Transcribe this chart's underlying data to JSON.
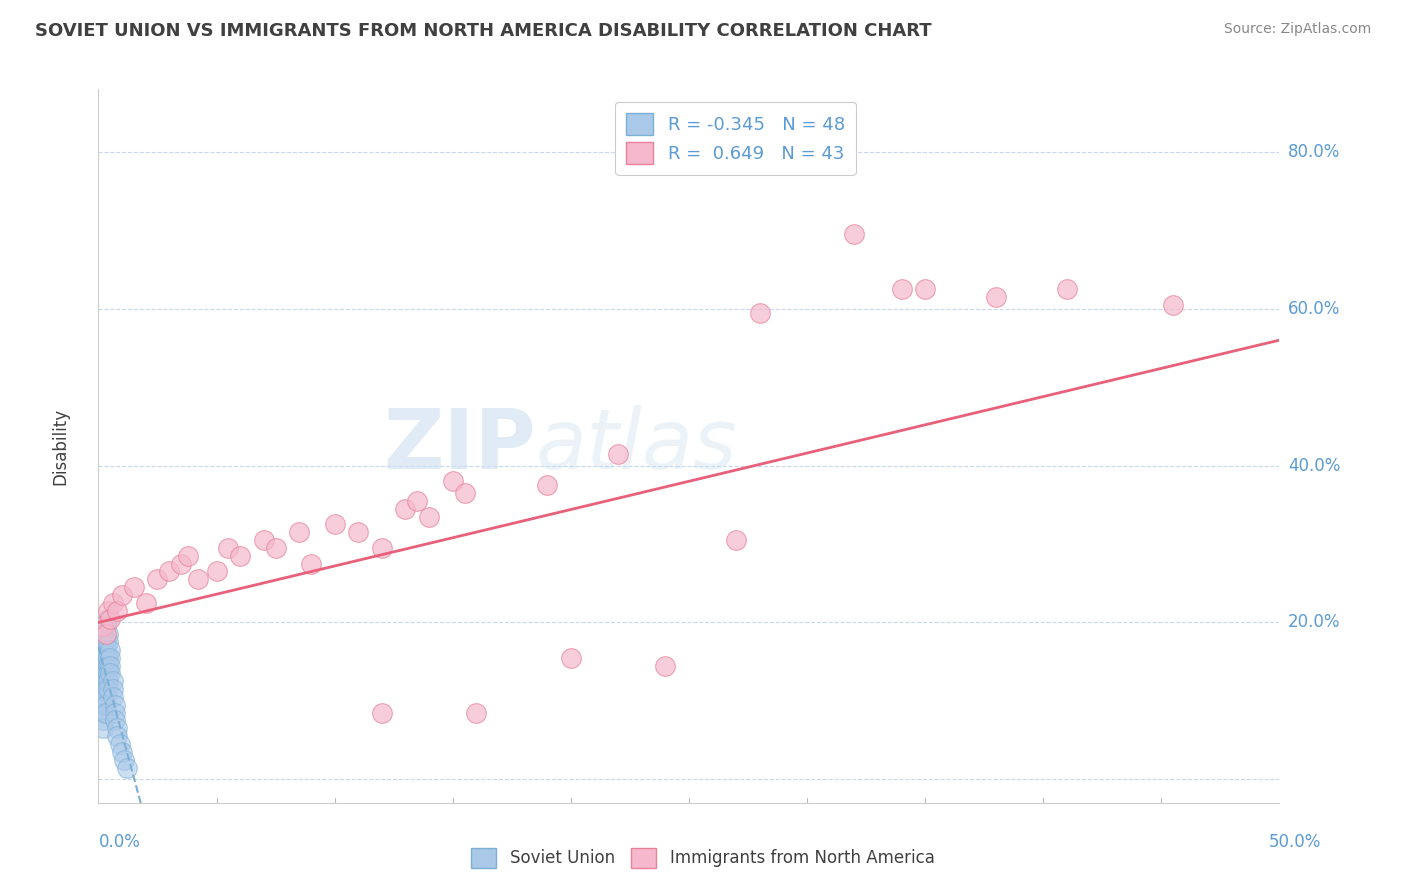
{
  "title": "SOVIET UNION VS IMMIGRANTS FROM NORTH AMERICA DISABILITY CORRELATION CHART",
  "source": "Source: ZipAtlas.com",
  "ylabel": "Disability",
  "xlim": [
    0.0,
    0.5
  ],
  "ylim": [
    -0.03,
    0.88
  ],
  "blue_R": -0.345,
  "blue_N": 48,
  "pink_R": 0.649,
  "pink_N": 43,
  "yticks": [
    0.0,
    0.2,
    0.4,
    0.6,
    0.8
  ],
  "ytick_labels": [
    "",
    "20.0%",
    "40.0%",
    "60.0%",
    "80.0%"
  ],
  "blue_scatter": [
    [
      0.002,
      0.155
    ],
    [
      0.002,
      0.145
    ],
    [
      0.002,
      0.135
    ],
    [
      0.002,
      0.125
    ],
    [
      0.002,
      0.115
    ],
    [
      0.002,
      0.105
    ],
    [
      0.002,
      0.095
    ],
    [
      0.002,
      0.085
    ],
    [
      0.002,
      0.075
    ],
    [
      0.002,
      0.065
    ],
    [
      0.002,
      0.185
    ],
    [
      0.002,
      0.175
    ],
    [
      0.002,
      0.165
    ],
    [
      0.003,
      0.155
    ],
    [
      0.003,
      0.145
    ],
    [
      0.003,
      0.135
    ],
    [
      0.003,
      0.125
    ],
    [
      0.003,
      0.115
    ],
    [
      0.003,
      0.105
    ],
    [
      0.003,
      0.095
    ],
    [
      0.003,
      0.085
    ],
    [
      0.003,
      0.195
    ],
    [
      0.003,
      0.175
    ],
    [
      0.003,
      0.165
    ],
    [
      0.004,
      0.155
    ],
    [
      0.004,
      0.145
    ],
    [
      0.004,
      0.135
    ],
    [
      0.004,
      0.125
    ],
    [
      0.004,
      0.115
    ],
    [
      0.004,
      0.205
    ],
    [
      0.004,
      0.185
    ],
    [
      0.004,
      0.175
    ],
    [
      0.005,
      0.165
    ],
    [
      0.005,
      0.155
    ],
    [
      0.005,
      0.145
    ],
    [
      0.005,
      0.135
    ],
    [
      0.006,
      0.125
    ],
    [
      0.006,
      0.115
    ],
    [
      0.006,
      0.105
    ],
    [
      0.007,
      0.095
    ],
    [
      0.007,
      0.085
    ],
    [
      0.007,
      0.075
    ],
    [
      0.008,
      0.065
    ],
    [
      0.008,
      0.055
    ],
    [
      0.009,
      0.045
    ],
    [
      0.01,
      0.035
    ],
    [
      0.011,
      0.025
    ],
    [
      0.012,
      0.015
    ]
  ],
  "pink_scatter": [
    [
      0.002,
      0.195
    ],
    [
      0.003,
      0.185
    ],
    [
      0.004,
      0.215
    ],
    [
      0.005,
      0.205
    ],
    [
      0.006,
      0.225
    ],
    [
      0.008,
      0.215
    ],
    [
      0.01,
      0.235
    ],
    [
      0.015,
      0.245
    ],
    [
      0.02,
      0.225
    ],
    [
      0.025,
      0.255
    ],
    [
      0.03,
      0.265
    ],
    [
      0.035,
      0.275
    ],
    [
      0.038,
      0.285
    ],
    [
      0.042,
      0.255
    ],
    [
      0.05,
      0.265
    ],
    [
      0.055,
      0.295
    ],
    [
      0.06,
      0.285
    ],
    [
      0.07,
      0.305
    ],
    [
      0.075,
      0.295
    ],
    [
      0.085,
      0.315
    ],
    [
      0.09,
      0.275
    ],
    [
      0.1,
      0.325
    ],
    [
      0.11,
      0.315
    ],
    [
      0.12,
      0.295
    ],
    [
      0.13,
      0.345
    ],
    [
      0.135,
      0.355
    ],
    [
      0.14,
      0.335
    ],
    [
      0.15,
      0.38
    ],
    [
      0.155,
      0.365
    ],
    [
      0.12,
      0.085
    ],
    [
      0.16,
      0.085
    ],
    [
      0.2,
      0.155
    ],
    [
      0.24,
      0.145
    ],
    [
      0.27,
      0.305
    ],
    [
      0.28,
      0.595
    ],
    [
      0.32,
      0.695
    ],
    [
      0.35,
      0.625
    ],
    [
      0.38,
      0.615
    ],
    [
      0.41,
      0.625
    ],
    [
      0.455,
      0.605
    ],
    [
      0.19,
      0.375
    ],
    [
      0.22,
      0.415
    ],
    [
      0.34,
      0.625
    ]
  ],
  "blue_color": "#aac8e8",
  "pink_color": "#f5b8cc",
  "blue_edge_color": "#7bafd4",
  "pink_edge_color": "#e8829a",
  "blue_line_color": "#7bafd4",
  "pink_line_color": "#e8607a",
  "watermark_zip": "ZIP",
  "watermark_atlas": "atlas",
  "background_color": "#ffffff",
  "grid_color": "#c8d8ea",
  "title_color": "#404040",
  "axis_label_color": "#5b9bd5",
  "ylabel_color": "#404040",
  "legend_R_color": "#5b9bd5",
  "source_color": "#888888"
}
